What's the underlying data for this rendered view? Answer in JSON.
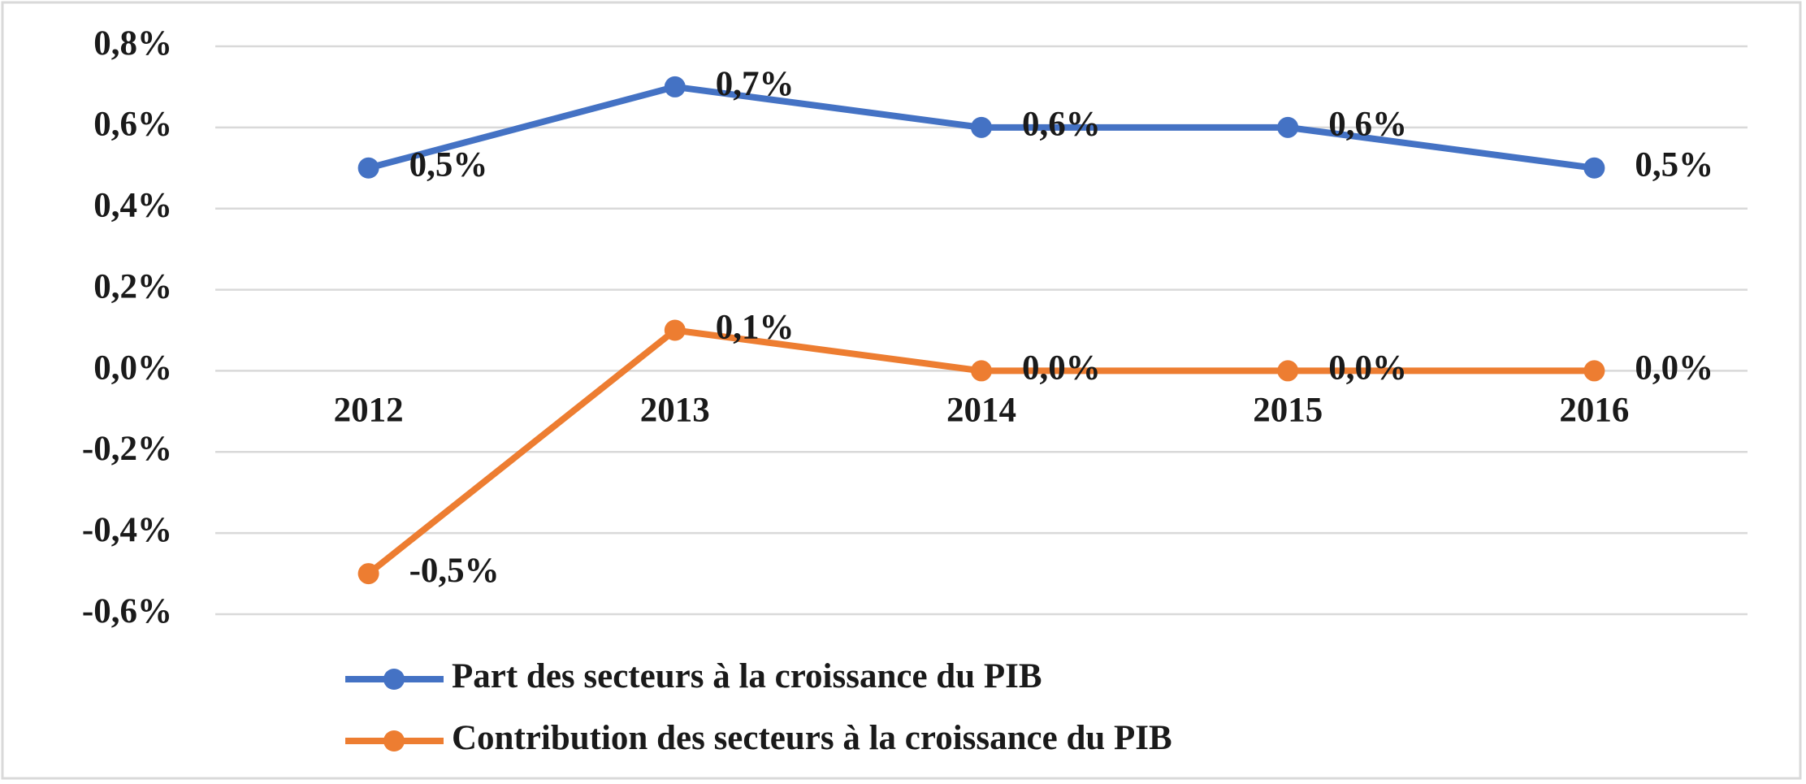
{
  "chart_data": {
    "type": "line",
    "categories": [
      "2012",
      "2013",
      "2014",
      "2015",
      "2016"
    ],
    "series": [
      {
        "name": "Part des secteurs à la croissance du PIB",
        "color": "#4472c4",
        "values": [
          0.5,
          0.7,
          0.6,
          0.6,
          0.5
        ],
        "value_labels": [
          "0,5%",
          "0,7%",
          "0,6%",
          "0,6%",
          "0,5%"
        ]
      },
      {
        "name": "Contribution des secteurs à la croissance du PIB",
        "color": "#ed7d31",
        "values": [
          -0.5,
          0.1,
          0.0,
          0.0,
          0.0
        ],
        "value_labels": [
          "-0,5%",
          "0,1%",
          "0,0%",
          "0,0%",
          "0,0%"
        ]
      }
    ],
    "ylim": [
      -0.6,
      0.8
    ],
    "yticks": [
      {
        "value": -0.6,
        "label": "-0,6%"
      },
      {
        "value": -0.4,
        "label": "-0,4%"
      },
      {
        "value": -0.2,
        "label": "-0,2%"
      },
      {
        "value": 0.0,
        "label": "0,0%"
      },
      {
        "value": 0.2,
        "label": "0,2%"
      },
      {
        "value": 0.4,
        "label": "0,4%"
      },
      {
        "value": 0.6,
        "label": "0,6%"
      },
      {
        "value": 0.8,
        "label": "0,8%"
      }
    ],
    "grid": true
  }
}
